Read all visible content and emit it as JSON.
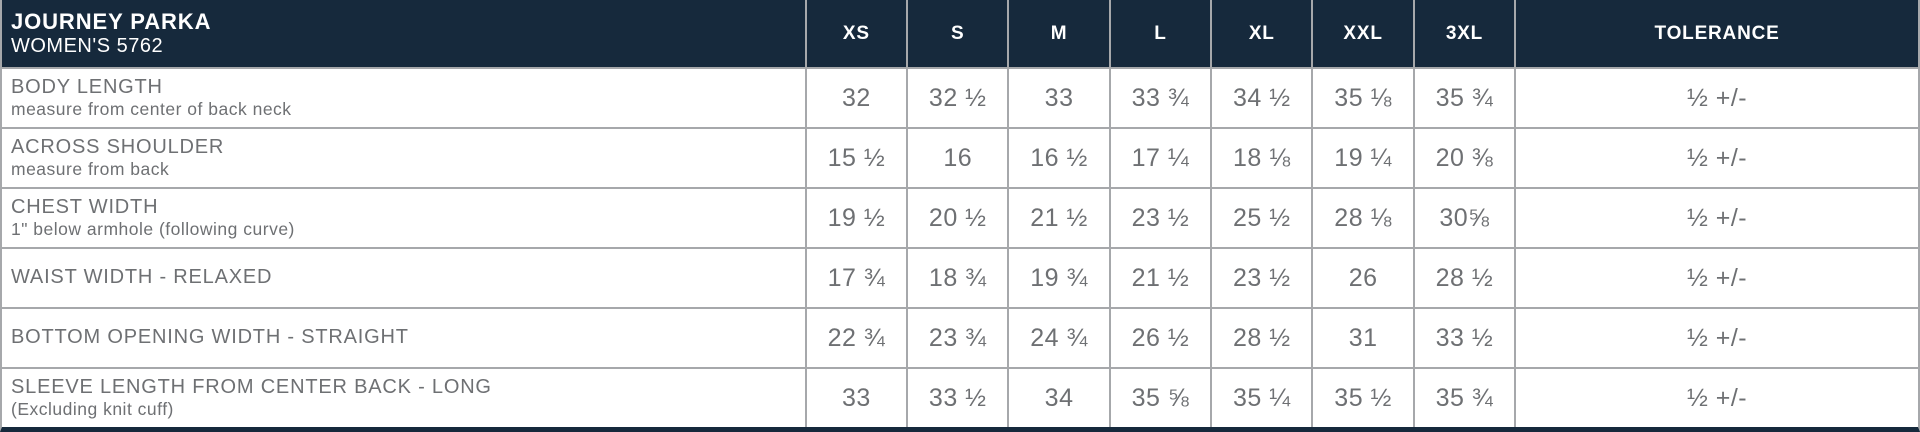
{
  "chart_data": {
    "type": "table",
    "title": "JOURNEY PARKA",
    "subtitle": "WOMEN'S 5762",
    "size_columns": [
      "XS",
      "S",
      "M",
      "L",
      "XL",
      "XXL",
      "3XL"
    ],
    "tolerance_header": "TOLERANCE",
    "rows": [
      {
        "label": "BODY LENGTH",
        "sublabel": "measure from center of back neck",
        "values": [
          "32",
          "32 ½",
          "33",
          "33 ¾",
          "34 ½",
          "35 ⅛",
          "35 ¾"
        ],
        "tolerance": "½ +/-"
      },
      {
        "label": "ACROSS SHOULDER",
        "sublabel": "measure from back",
        "values": [
          "15 ½",
          "16",
          "16 ½",
          "17 ¼",
          "18 ⅛",
          "19 ¼",
          "20 ⅜"
        ],
        "tolerance": "½ +/-"
      },
      {
        "label": "CHEST WIDTH",
        "sublabel": "1\" below armhole (following curve)",
        "values": [
          "19 ½",
          "20 ½",
          "21 ½",
          "23 ½",
          "25 ½",
          "28 ⅛",
          "30⅝"
        ],
        "tolerance": "½ +/-"
      },
      {
        "label": "WAIST WIDTH - RELAXED",
        "sublabel": "",
        "values": [
          "17 ¾",
          "18 ¾",
          "19 ¾",
          "21 ½",
          "23 ½",
          "26",
          "28 ½"
        ],
        "tolerance": "½ +/-"
      },
      {
        "label": "BOTTOM OPENING WIDTH - STRAIGHT",
        "sublabel": "",
        "values": [
          "22 ¾",
          "23 ¾",
          "24 ¾",
          "26 ½",
          "28 ½",
          "31",
          "33 ½"
        ],
        "tolerance": "½ +/-"
      },
      {
        "label": "SLEEVE LENGTH FROM CENTER BACK - LONG",
        "sublabel": "(Excluding knit cuff)",
        "values": [
          "33",
          "33 ½",
          "34",
          "35 ⅝",
          "35 ¼",
          "35 ½",
          "35 ¾"
        ],
        "tolerance": "½ +/-"
      }
    ]
  },
  "colors": {
    "header_bg": "#16293c",
    "header_text": "#ffffff",
    "body_text": "#6e7073",
    "grid_line": "#a6a8ab"
  }
}
